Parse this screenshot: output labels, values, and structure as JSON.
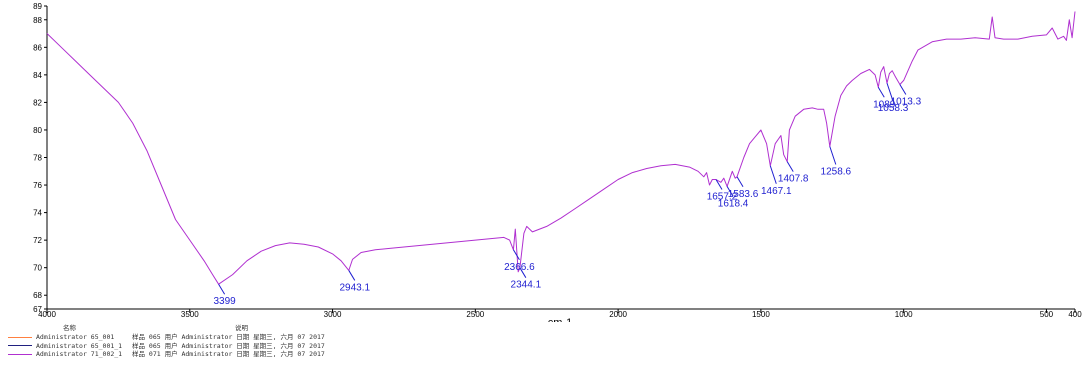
{
  "chart_data": {
    "type": "line",
    "xlabel": "cm-1",
    "ylabel": "",
    "xlim": [
      4000,
      400
    ],
    "ylim": [
      67,
      89
    ],
    "x_ticks": [
      "4000",
      "3500",
      "3000",
      "2500",
      "2000",
      "1500",
      "1000",
      "500",
      "400"
    ],
    "x_tick_values": [
      4000,
      3500,
      3000,
      2500,
      2000,
      1500,
      1000,
      500,
      400
    ],
    "y_ticks": [
      "67",
      "68",
      "70",
      "72",
      "74",
      "76",
      "78",
      "80",
      "82",
      "84",
      "86",
      "88",
      "89"
    ],
    "y_tick_values": [
      67,
      68,
      70,
      72,
      74,
      76,
      78,
      80,
      82,
      84,
      86,
      88,
      89
    ],
    "series": [
      {
        "name": "Administrator 71_002_1",
        "color": "#b030d0",
        "x": [
          4000,
          3950,
          3900,
          3850,
          3800,
          3750,
          3700,
          3650,
          3600,
          3550,
          3500,
          3450,
          3420,
          3399,
          3350,
          3300,
          3250,
          3200,
          3150,
          3100,
          3050,
          3000,
          2970,
          2943.1,
          2930,
          2900,
          2850,
          2800,
          2750,
          2700,
          2650,
          2600,
          2550,
          2500,
          2450,
          2400,
          2380,
          2366.6,
          2360,
          2350,
          2344.1,
          2330,
          2320,
          2300,
          2250,
          2200,
          2150,
          2100,
          2050,
          2000,
          1950,
          1900,
          1850,
          1800,
          1750,
          1720,
          1700,
          1690,
          1680,
          1670,
          1657.2,
          1640,
          1630,
          1618.4,
          1600,
          1590,
          1583.6,
          1560,
          1540,
          1520,
          1500,
          1480,
          1467.1,
          1450,
          1430,
          1420,
          1407.8,
          1400,
          1380,
          1350,
          1320,
          1300,
          1280,
          1270,
          1258.6,
          1240,
          1220,
          1200,
          1180,
          1150,
          1120,
          1100,
          1089,
          1080,
          1070,
          1058.3,
          1050,
          1040,
          1030,
          1013.3,
          1000,
          970,
          950,
          900,
          850,
          800,
          750,
          700,
          690,
          680,
          650,
          600,
          550,
          500,
          480,
          460,
          440,
          430,
          420,
          410,
          400
        ],
        "y": [
          87.0,
          86.0,
          85.0,
          84.0,
          83.0,
          82.0,
          80.5,
          78.5,
          76.0,
          73.5,
          72.0,
          70.5,
          69.5,
          68.8,
          69.5,
          70.5,
          71.2,
          71.6,
          71.8,
          71.7,
          71.5,
          71.0,
          70.5,
          69.8,
          70.6,
          71.1,
          71.3,
          71.4,
          71.5,
          71.6,
          71.7,
          71.8,
          71.9,
          72.0,
          72.1,
          72.2,
          72.0,
          71.3,
          72.8,
          69.7,
          70.0,
          72.5,
          73.0,
          72.6,
          73.0,
          73.6,
          74.3,
          75.0,
          75.7,
          76.4,
          76.9,
          77.2,
          77.4,
          77.5,
          77.3,
          77.0,
          76.6,
          76.9,
          76.0,
          76.4,
          76.4,
          76.2,
          76.5,
          75.9,
          77.0,
          76.5,
          76.6,
          78.0,
          79.0,
          79.5,
          80.0,
          79.0,
          77.4,
          79.0,
          79.6,
          78.2,
          77.7,
          80.0,
          81.0,
          81.5,
          81.6,
          81.5,
          81.5,
          80.5,
          78.8,
          81.0,
          82.5,
          83.2,
          83.6,
          84.1,
          84.4,
          84.0,
          83.1,
          84.2,
          84.6,
          83.4,
          84.1,
          84.3,
          83.9,
          83.3,
          83.6,
          85.0,
          85.8,
          86.4,
          86.6,
          86.6,
          86.7,
          86.6,
          88.2,
          86.7,
          86.6,
          86.6,
          86.8,
          86.9,
          87.4,
          86.6,
          86.8,
          86.5,
          88.0,
          86.7,
          88.6
        ]
      }
    ],
    "peak_labels": [
      {
        "x": 3399,
        "y": 68.8,
        "label": "3399"
      },
      {
        "x": 2943.1,
        "y": 69.8,
        "label": "2943.1"
      },
      {
        "x": 2366.6,
        "y": 71.3,
        "label": "2366.6"
      },
      {
        "x": 2344.1,
        "y": 70.0,
        "label": "2344.1"
      },
      {
        "x": 1657.2,
        "y": 76.4,
        "label": "1657.2"
      },
      {
        "x": 1618.4,
        "y": 75.9,
        "label": "1618.4"
      },
      {
        "x": 1583.6,
        "y": 76.6,
        "label": "1583.6"
      },
      {
        "x": 1467.1,
        "y": 77.4,
        "label": "1467.1"
      },
      {
        "x": 1407.8,
        "y": 77.7,
        "label": "1407.8"
      },
      {
        "x": 1258.6,
        "y": 78.8,
        "label": "1258.6"
      },
      {
        "x": 1089,
        "y": 83.1,
        "label": "1089"
      },
      {
        "x": 1058.3,
        "y": 83.4,
        "label": "1058.3"
      },
      {
        "x": 1013.3,
        "y": 83.3,
        "label": "1013.3"
      }
    ],
    "grid": false,
    "legend_position": "bottom-left"
  },
  "legend": {
    "header_name": "名称",
    "header_desc": "说明",
    "entries": [
      {
        "name": "Administrator 65_001",
        "desc": "样品 065 用户 Administrator 日期 星期三, 六月 07 2017",
        "color": "#ff8040"
      },
      {
        "name": "Administrator 65_001_1",
        "desc": "样品 065 用户 Administrator 日期 星期三, 六月 07 2017",
        "color": "#202080"
      },
      {
        "name": "Administrator 71_002_1",
        "desc": "样品 071 用户 Administrator 日期 星期三, 六月 07 2017",
        "color": "#b030d0"
      }
    ]
  }
}
